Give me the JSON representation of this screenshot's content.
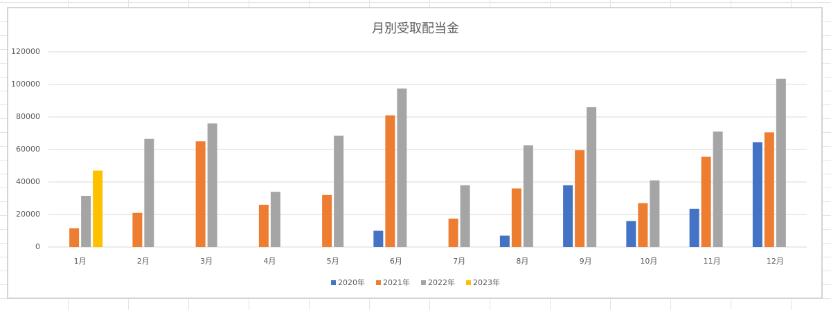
{
  "chart_data": {
    "type": "bar",
    "title": "月別受取配当金",
    "categories": [
      "1月",
      "2月",
      "3月",
      "4月",
      "5月",
      "6月",
      "7月",
      "8月",
      "9月",
      "10月",
      "11月",
      "12月"
    ],
    "series": [
      {
        "name": "2020年",
        "color": "#4472c4",
        "values": [
          null,
          null,
          null,
          null,
          null,
          10000,
          null,
          7000,
          38000,
          16000,
          23500,
          64500
        ]
      },
      {
        "name": "2021年",
        "color": "#ed7d31",
        "values": [
          11500,
          21000,
          65000,
          26000,
          32000,
          81000,
          17500,
          36000,
          59500,
          27000,
          55500,
          70500
        ]
      },
      {
        "name": "2022年",
        "color": "#a5a5a5",
        "values": [
          31500,
          66500,
          76000,
          34000,
          68500,
          97500,
          38000,
          62500,
          86000,
          41000,
          71000,
          103500
        ]
      },
      {
        "name": "2023年",
        "color": "#ffc000",
        "values": [
          47000,
          null,
          null,
          null,
          null,
          null,
          null,
          null,
          null,
          null,
          null,
          null
        ]
      }
    ],
    "ylim": [
      0,
      120000
    ],
    "yticks": [
      0,
      20000,
      40000,
      60000,
      80000,
      100000,
      120000
    ],
    "grid": true,
    "legend": "bottom"
  }
}
